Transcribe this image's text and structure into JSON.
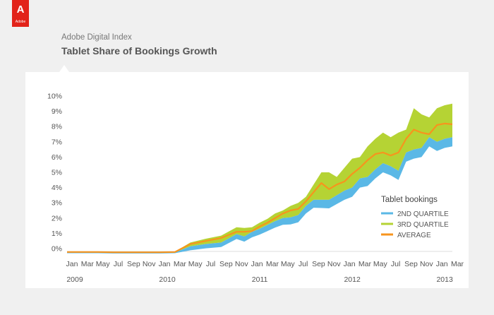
{
  "brand": {
    "logo_mark": "A",
    "logo_text": "Adobe"
  },
  "header": {
    "subtitle": "Adobe Digital Index",
    "title": "Tablet Share of Bookings Growth"
  },
  "colors": {
    "q2": "#5ab8e6",
    "q3": "#b5d334",
    "avg": "#f7941d",
    "axis_text": "#555555",
    "logo": "#e2231a"
  },
  "chart_data": {
    "type": "area",
    "title": "Tablet Share of Bookings Growth",
    "legend_title": "Tablet bookings",
    "legend_position": "right",
    "ylim": [
      0,
      10
    ],
    "yticks": [
      "0%",
      "1%",
      "2%",
      "3%",
      "4%",
      "5%",
      "6%",
      "7%",
      "8%",
      "9%",
      "10%"
    ],
    "x_tick_labels": [
      "Jan",
      "Mar",
      "May",
      "Jul",
      "Sep",
      "Nov",
      "Jan",
      "Mar",
      "May",
      "Jul",
      "Sep",
      "Nov",
      "Jan",
      "Mar",
      "May",
      "Jul",
      "Sep",
      "Nov",
      "Jan",
      "Mar",
      "May",
      "Jul",
      "Sep",
      "Nov",
      "Jan",
      "Mar"
    ],
    "year_labels": [
      {
        "label": "2009",
        "month": "2009-01"
      },
      {
        "label": "2010",
        "month": "2010-01"
      },
      {
        "label": "2011",
        "month": "2011-01"
      },
      {
        "label": "2012",
        "month": "2012-01"
      },
      {
        "label": "2013",
        "month": "2013-01"
      }
    ],
    "x": [
      "2009-01",
      "2009-03",
      "2009-05",
      "2009-07",
      "2009-09",
      "2009-11",
      "2010-01",
      "2010-03",
      "2010-05",
      "2010-07",
      "2010-09",
      "2010-11",
      "2010-12",
      "2011-01",
      "2011-02",
      "2011-03",
      "2011-04",
      "2011-05",
      "2011-06",
      "2011-07",
      "2011-08",
      "2011-09",
      "2011-10",
      "2011-11",
      "2011-12",
      "2012-01",
      "2012-02",
      "2012-03",
      "2012-04",
      "2012-05",
      "2012-06",
      "2012-07",
      "2012-08",
      "2012-09",
      "2012-10",
      "2012-11",
      "2012-12",
      "2013-01",
      "2013-02",
      "2013-03"
    ],
    "series": [
      {
        "name": "2ND QUARTILE",
        "color": "#5ab8e6",
        "values": [
          -0.25,
          -0.25,
          -0.25,
          -0.27,
          -0.27,
          -0.27,
          -0.27,
          -0.25,
          0.15,
          0.3,
          0.4,
          0.95,
          0.8,
          1.1,
          1.3,
          1.55,
          1.8,
          2.0,
          2.05,
          2.2,
          2.8,
          3.2,
          3.2,
          3.2,
          3.5,
          3.8,
          4.0,
          4.6,
          4.7,
          5.2,
          5.6,
          5.4,
          5.1,
          6.3,
          6.5,
          6.6,
          7.3,
          7.0,
          7.2,
          7.3
        ]
      },
      {
        "name": "3RD QUARTILE",
        "color": "#b5d334",
        "values": [
          -0.2,
          -0.2,
          -0.2,
          -0.22,
          -0.22,
          -0.22,
          -0.22,
          -0.2,
          0.4,
          0.65,
          0.85,
          1.4,
          1.35,
          1.4,
          1.7,
          1.95,
          2.3,
          2.5,
          2.8,
          3.0,
          3.4,
          4.2,
          5.0,
          5.0,
          4.7,
          5.3,
          5.9,
          6.0,
          6.7,
          7.2,
          7.6,
          7.3,
          7.6,
          7.8,
          9.2,
          8.8,
          8.6,
          9.2,
          9.4,
          9.5
        ]
      },
      {
        "name": "AVERAGE",
        "color": "#f7941d",
        "values": [
          -0.22,
          -0.22,
          -0.22,
          -0.24,
          -0.24,
          -0.24,
          -0.24,
          -0.22,
          0.3,
          0.5,
          0.7,
          1.1,
          1.1,
          1.15,
          1.45,
          1.7,
          2.0,
          2.3,
          2.5,
          2.6,
          3.1,
          3.7,
          4.3,
          3.9,
          4.2,
          4.4,
          4.9,
          5.3,
          5.8,
          6.2,
          6.3,
          6.1,
          6.3,
          7.2,
          7.8,
          7.6,
          7.5,
          8.1,
          8.2,
          8.15
        ]
      }
    ]
  }
}
